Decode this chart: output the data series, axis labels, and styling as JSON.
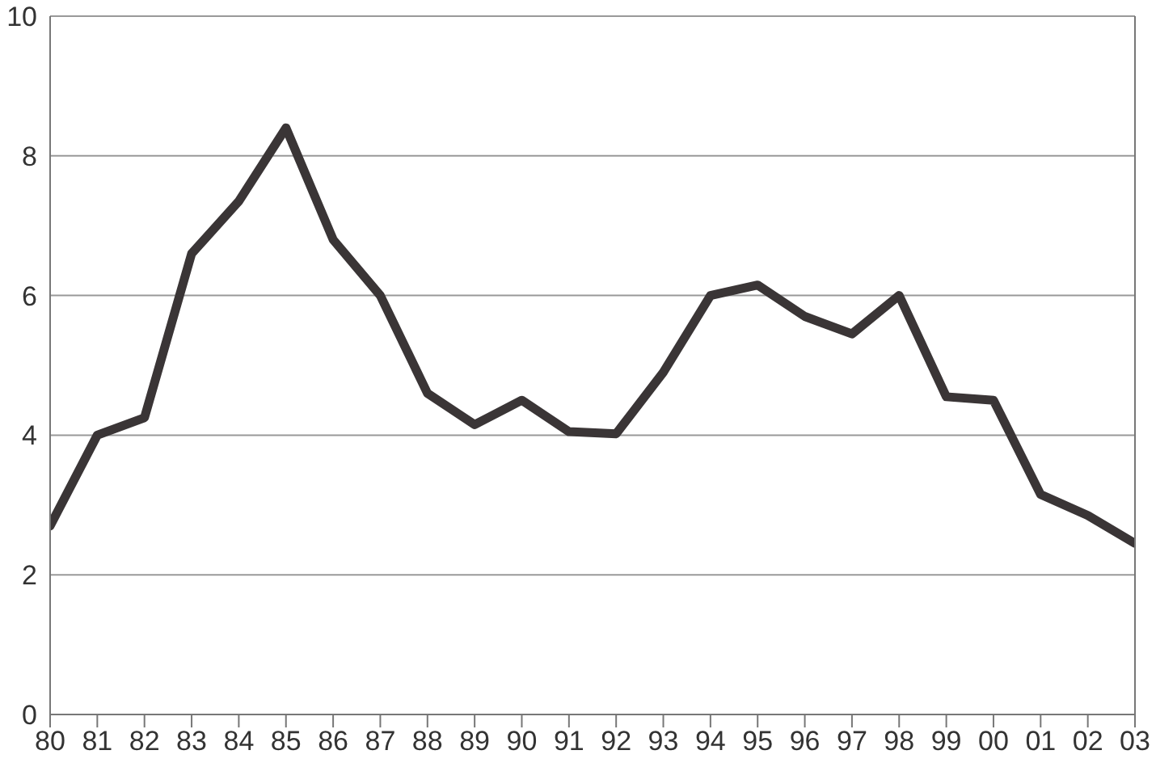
{
  "chart_data": {
    "type": "line",
    "categories": [
      "80",
      "81",
      "82",
      "83",
      "84",
      "85",
      "86",
      "87",
      "88",
      "89",
      "90",
      "91",
      "92",
      "93",
      "94",
      "95",
      "96",
      "97",
      "98",
      "99",
      "00",
      "01",
      "02",
      "03"
    ],
    "series": [
      {
        "color": "#3a3536",
        "values": [
          2.7,
          4.0,
          4.25,
          6.6,
          7.35,
          8.4,
          6.8,
          6.0,
          4.6,
          4.15,
          4.5,
          4.05,
          4.02,
          4.9,
          6.0,
          6.15,
          5.7,
          5.45,
          6.0,
          4.55,
          4.5,
          3.15,
          2.85,
          2.45
        ]
      }
    ],
    "ylim": [
      0,
      10
    ],
    "yticks": [
      0,
      2,
      4,
      6,
      8,
      10
    ],
    "grid": "y",
    "legend": false,
    "marker": "none",
    "line_style": "solid"
  }
}
